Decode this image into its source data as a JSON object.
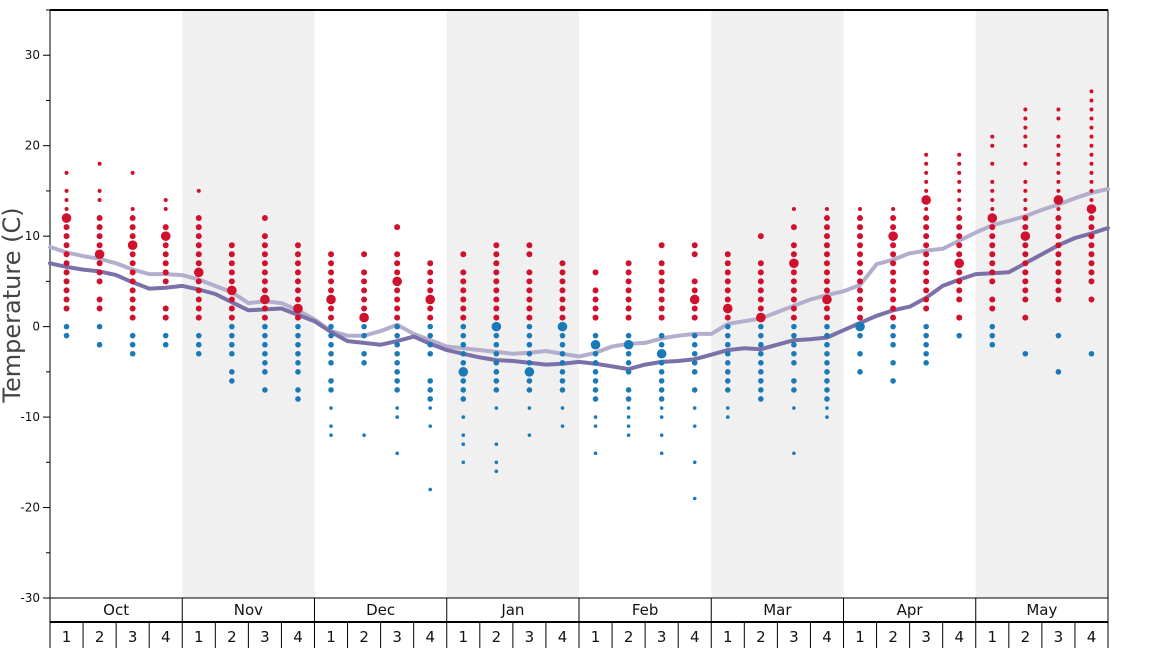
{
  "chart_data": {
    "type": "scatter",
    "ylabel": "Temperature (C)",
    "ylim": [
      -30,
      35
    ],
    "y_ticks": [
      -30,
      -20,
      -10,
      0,
      10,
      20,
      30
    ],
    "grid": false,
    "months": [
      "Oct",
      "Nov",
      "Dec",
      "Jan",
      "Feb",
      "Mar",
      "Apr",
      "May"
    ],
    "weeks": [
      "1",
      "2",
      "3",
      "4"
    ],
    "shaded_months": [
      "Nov",
      "Jan",
      "Mar",
      "May"
    ],
    "colors": {
      "warm_dots": "#d0102c",
      "cold_dots": "#1a7ab8",
      "line_dark": "#7b71a8",
      "line_light": "#b4aecd",
      "shade": "#f0f0f0"
    },
    "series": [
      {
        "x": [
          0,
          0.5,
          1,
          1.5,
          2,
          2.5,
          3,
          3.5,
          4,
          4.5,
          5,
          5.5,
          6,
          6.5,
          7,
          7.5,
          8,
          8.5,
          9,
          9.5,
          10,
          10.5,
          11,
          11.5,
          12,
          12.5,
          13,
          13.5,
          14,
          14.5,
          15,
          15.5,
          16,
          16.5,
          17,
          17.5,
          18,
          18.5,
          19,
          19.5,
          20,
          20.5,
          21,
          21.5,
          22,
          22.5,
          23,
          23.5,
          24,
          24.5,
          25,
          25.5,
          26,
          26.5,
          27,
          27.5,
          28,
          28.5,
          29,
          29.5,
          30,
          30.5,
          31,
          31.5,
          32
        ],
        "values": [
          8.8,
          8.2,
          7.8,
          7.5,
          7.0,
          6.3,
          5.8,
          5.8,
          5.7,
          5.2,
          4.5,
          3.8,
          2.6,
          2.8,
          2.6,
          1.8,
          0.8,
          -0.5,
          -1.0,
          -1.0,
          -0.5,
          0.2,
          -0.8,
          -1.5,
          -2.2,
          -2.4,
          -2.6,
          -2.8,
          -3.0,
          -2.9,
          -2.7,
          -3.0,
          -3.3,
          -2.9,
          -2.2,
          -1.9,
          -1.8,
          -1.3,
          -1.0,
          -0.8,
          -0.8,
          0.3,
          0.6,
          0.9,
          1.6,
          2.3,
          3.0,
          3.5,
          3.9,
          4.6,
          6.9,
          7.4,
          8.1,
          8.4,
          8.6,
          9.5,
          10.4,
          11.2,
          11.7,
          12.2,
          12.9,
          13.5,
          14.2,
          14.8,
          15.2
        ]
      },
      {
        "x": [
          0,
          0.5,
          1,
          1.5,
          2,
          2.5,
          3,
          3.5,
          4,
          4.5,
          5,
          5.5,
          6,
          6.5,
          7,
          7.5,
          8,
          8.5,
          9,
          9.5,
          10,
          10.5,
          11,
          11.5,
          12,
          12.5,
          13,
          13.5,
          14,
          14.5,
          15,
          15.5,
          16,
          16.5,
          17,
          17.5,
          18,
          18.5,
          19,
          19.5,
          20,
          20.5,
          21,
          21.5,
          22,
          22.5,
          23,
          23.5,
          24,
          24.5,
          25,
          25.5,
          26,
          26.5,
          27,
          27.5,
          28,
          28.5,
          29,
          29.5,
          30,
          30.5,
          31,
          31.5,
          32
        ],
        "values": [
          7.0,
          6.6,
          6.3,
          6.1,
          5.7,
          4.9,
          4.2,
          4.3,
          4.5,
          4.1,
          3.6,
          2.7,
          1.8,
          1.9,
          2.0,
          1.3,
          0.6,
          -0.6,
          -1.6,
          -1.8,
          -2.0,
          -1.6,
          -1.1,
          -1.9,
          -2.6,
          -3.0,
          -3.4,
          -3.7,
          -3.8,
          -4.0,
          -4.2,
          -4.1,
          -3.9,
          -4.1,
          -4.4,
          -4.7,
          -4.2,
          -3.9,
          -3.8,
          -3.6,
          -3.1,
          -2.6,
          -2.4,
          -2.5,
          -2.0,
          -1.5,
          -1.4,
          -1.2,
          -0.4,
          0.4,
          1.2,
          1.8,
          2.2,
          3.2,
          4.5,
          5.2,
          5.8,
          5.9,
          6.0,
          7.0,
          8.0,
          9.0,
          9.8,
          10.3,
          10.9
        ]
      }
    ],
    "dots": [
      {
        "week": 1,
        "warm": [
          17,
          15,
          14,
          13,
          12,
          11,
          10,
          9,
          8,
          7,
          6,
          5,
          4,
          3,
          2
        ],
        "cold": [
          0,
          -1
        ],
        "big": [
          12
        ]
      },
      {
        "week": 2,
        "warm": [
          18,
          15,
          14,
          12,
          11,
          10,
          9,
          8,
          7,
          6,
          5,
          3,
          2
        ],
        "cold": [
          0,
          -2
        ],
        "big": [
          8
        ]
      },
      {
        "week": 3,
        "warm": [
          17,
          13,
          12,
          11,
          10,
          9,
          8,
          7,
          6,
          5,
          4,
          3,
          2,
          1
        ],
        "cold": [
          -1,
          -2,
          -3
        ],
        "big": [
          9
        ]
      },
      {
        "week": 4,
        "warm": [
          14,
          13,
          11,
          10,
          9,
          8,
          7,
          6,
          5,
          2,
          1
        ],
        "cold": [
          -1,
          -2
        ],
        "big": [
          10
        ]
      },
      {
        "week": 5,
        "warm": [
          15,
          12,
          11,
          10,
          9,
          8,
          7,
          6,
          5,
          4,
          3,
          2,
          1
        ],
        "cold": [
          -1,
          -2,
          -3
        ],
        "big": [
          6
        ]
      },
      {
        "week": 6,
        "warm": [
          9,
          8,
          7,
          6,
          5,
          4,
          3,
          2,
          1
        ],
        "cold": [
          0,
          -1,
          -2,
          -3,
          -5,
          -6
        ],
        "big": [
          4
        ]
      },
      {
        "week": 7,
        "warm": [
          12,
          10,
          9,
          8,
          7,
          6,
          5,
          4,
          3,
          2,
          1
        ],
        "cold": [
          0,
          -1,
          -2,
          -3,
          -4,
          -5,
          -7
        ],
        "big": [
          3
        ]
      },
      {
        "week": 8,
        "warm": [
          9,
          8,
          7,
          6,
          5,
          4,
          3,
          2,
          1
        ],
        "cold": [
          0,
          -1,
          -2,
          -3,
          -4,
          -5,
          -7,
          -8
        ],
        "big": [
          2
        ]
      },
      {
        "week": 9,
        "warm": [
          8,
          7,
          6,
          5,
          4,
          3,
          2,
          1
        ],
        "cold": [
          0,
          -1,
          -2,
          -3,
          -4,
          -6,
          -7,
          -9,
          -11,
          -12
        ],
        "big": [
          3
        ]
      },
      {
        "week": 10,
        "warm": [
          8,
          6,
          5,
          4,
          3,
          2,
          1
        ],
        "cold": [
          0,
          -1,
          -3,
          -4,
          -12
        ],
        "big": [
          1
        ]
      },
      {
        "week": 11,
        "warm": [
          11,
          8,
          7,
          6,
          5,
          4,
          3,
          2,
          1
        ],
        "cold": [
          0,
          -1,
          -2,
          -3,
          -4,
          -5,
          -6,
          -7,
          -9,
          -10,
          -14
        ],
        "big": [
          5
        ]
      },
      {
        "week": 12,
        "warm": [
          7,
          6,
          5,
          4,
          3,
          2,
          1
        ],
        "cold": [
          0,
          -1,
          -2,
          -3,
          -6,
          -7,
          -8,
          -9,
          -11,
          -18
        ],
        "big": [
          3
        ]
      },
      {
        "week": 13,
        "warm": [
          8,
          6,
          5,
          4,
          3,
          2,
          1
        ],
        "cold": [
          0,
          -1,
          -2,
          -3,
          -4,
          -5,
          -6,
          -7,
          -8,
          -10,
          -12,
          -13,
          -15
        ],
        "big": [
          -5
        ]
      },
      {
        "week": 14,
        "warm": [
          9,
          8,
          7,
          6,
          5,
          4,
          3,
          2,
          1
        ],
        "cold": [
          0,
          -1,
          -2,
          -3,
          -4,
          -5,
          -6,
          -7,
          -9,
          -13,
          -15,
          -16
        ],
        "big": [
          0
        ]
      },
      {
        "week": 15,
        "warm": [
          9,
          8,
          6,
          5,
          4,
          3,
          2,
          1
        ],
        "cold": [
          0,
          -1,
          -2,
          -3,
          -4,
          -5,
          -6,
          -7,
          -9,
          -12
        ],
        "big": [
          -5
        ]
      },
      {
        "week": 16,
        "warm": [
          7,
          6,
          5,
          4,
          3,
          2,
          1
        ],
        "cold": [
          0,
          -1,
          -2,
          -3,
          -4,
          -5,
          -6,
          -7,
          -9,
          -11
        ],
        "big": [
          0
        ]
      },
      {
        "week": 17,
        "warm": [
          6,
          4,
          3,
          2,
          1
        ],
        "cold": [
          -1,
          -2,
          -3,
          -4,
          -5,
          -6,
          -7,
          -8,
          -10,
          -11,
          -14
        ],
        "big": [
          -2
        ]
      },
      {
        "week": 18,
        "warm": [
          7,
          6,
          5,
          4,
          3,
          2,
          1
        ],
        "cold": [
          -1,
          -2,
          -3,
          -4,
          -5,
          -7,
          -8,
          -9,
          -10,
          -11,
          -12
        ],
        "big": [
          -2
        ]
      },
      {
        "week": 19,
        "warm": [
          9,
          7,
          6,
          5,
          4,
          3,
          2,
          1
        ],
        "cold": [
          -1,
          -2,
          -3,
          -4,
          -5,
          -6,
          -7,
          -8,
          -9,
          -10,
          -12,
          -14
        ],
        "big": [
          -3
        ]
      },
      {
        "week": 20,
        "warm": [
          9,
          8,
          5,
          4,
          3,
          2,
          1
        ],
        "cold": [
          -1,
          -2,
          -3,
          -4,
          -5,
          -7,
          -9,
          -11,
          -15,
          -19
        ],
        "big": [
          3
        ]
      },
      {
        "week": 21,
        "warm": [
          8,
          7,
          6,
          5,
          4,
          3,
          2,
          1
        ],
        "cold": [
          0,
          -1,
          -2,
          -3,
          -4,
          -5,
          -6,
          -7,
          -9,
          -10
        ],
        "big": [
          2
        ]
      },
      {
        "week": 22,
        "warm": [
          10,
          7,
          6,
          5,
          4,
          3,
          2,
          1
        ],
        "cold": [
          0,
          -1,
          -2,
          -3,
          -4,
          -5,
          -6,
          -7,
          -8
        ],
        "big": [
          1
        ]
      },
      {
        "week": 23,
        "warm": [
          13,
          11,
          9,
          8,
          7,
          6,
          5,
          4,
          3,
          2,
          1
        ],
        "cold": [
          0,
          -1,
          -2,
          -3,
          -4,
          -6,
          -7,
          -9,
          -14
        ],
        "big": [
          7
        ]
      },
      {
        "week": 24,
        "warm": [
          13,
          12,
          11,
          10,
          9,
          8,
          7,
          6,
          5,
          4,
          3,
          2,
          1
        ],
        "cold": [
          0,
          -1,
          -2,
          -3,
          -4,
          -5,
          -6,
          -7,
          -8,
          -9,
          -10
        ],
        "big": [
          3
        ]
      },
      {
        "week": 25,
        "warm": [
          13,
          12,
          11,
          10,
          9,
          8,
          7,
          6,
          5,
          4,
          3,
          2,
          1
        ],
        "cold": [
          0,
          -1,
          -3,
          -5
        ],
        "big": [
          0
        ]
      },
      {
        "week": 26,
        "warm": [
          13,
          12,
          11,
          10,
          9,
          8,
          7,
          6,
          5,
          4,
          3,
          2,
          1
        ],
        "cold": [
          0,
          -1,
          -2,
          -4,
          -6
        ],
        "big": [
          10
        ]
      },
      {
        "week": 27,
        "warm": [
          19,
          18,
          17,
          16,
          15,
          14,
          13,
          12,
          11,
          10,
          9,
          8,
          7,
          6,
          5,
          4,
          3,
          2
        ],
        "cold": [
          0,
          -1,
          -2,
          -3,
          -4
        ],
        "big": [
          14
        ]
      },
      {
        "week": 28,
        "warm": [
          19,
          18,
          17,
          16,
          15,
          14,
          13,
          12,
          11,
          10,
          9,
          8,
          7,
          6,
          5,
          4,
          3,
          1
        ],
        "cold": [
          -1
        ],
        "big": [
          7
        ]
      },
      {
        "week": 29,
        "warm": [
          21,
          20,
          18,
          16,
          15,
          14,
          13,
          12,
          11,
          10,
          9,
          8,
          7,
          6,
          5,
          3,
          2
        ],
        "cold": [
          0,
          -1,
          -2
        ],
        "big": [
          12
        ]
      },
      {
        "week": 30,
        "warm": [
          24,
          23,
          22,
          21,
          20,
          18,
          16,
          15,
          14,
          13,
          12,
          11,
          10,
          9,
          8,
          7,
          6,
          5,
          4,
          3,
          1
        ],
        "cold": [
          -3
        ],
        "big": [
          10
        ]
      },
      {
        "week": 31,
        "warm": [
          24,
          23,
          21,
          20,
          19,
          18,
          17,
          16,
          15,
          14,
          13,
          12,
          11,
          10,
          9,
          8,
          7,
          6,
          5,
          4,
          3
        ],
        "cold": [
          -1,
          -5
        ],
        "big": [
          14
        ]
      },
      {
        "week": 32,
        "warm": [
          26,
          25,
          24,
          23,
          22,
          21,
          20,
          19,
          18,
          17,
          16,
          15,
          14,
          13,
          12,
          11,
          10,
          9,
          8,
          7,
          6,
          5,
          3
        ],
        "cold": [
          -3
        ],
        "big": [
          13
        ]
      }
    ]
  }
}
